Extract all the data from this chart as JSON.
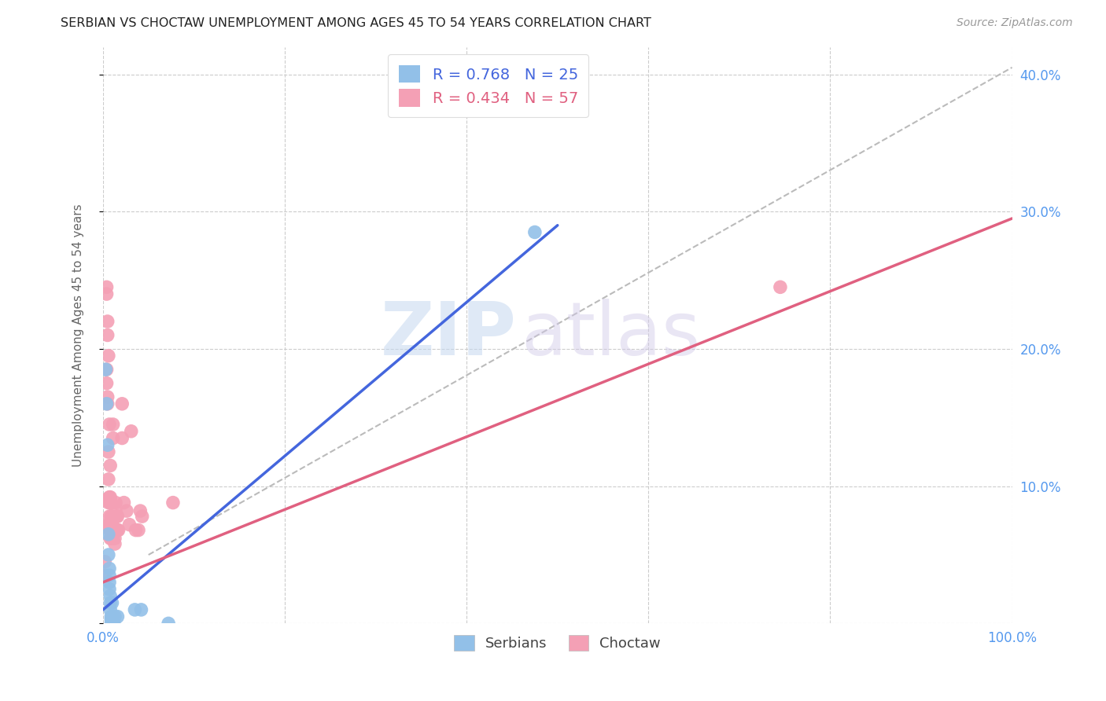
{
  "title": "SERBIAN VS CHOCTAW UNEMPLOYMENT AMONG AGES 45 TO 54 YEARS CORRELATION CHART",
  "source": "Source: ZipAtlas.com",
  "ylabel": "Unemployment Among Ages 45 to 54 years",
  "xlim": [
    0.0,
    1.0
  ],
  "ylim": [
    0.0,
    0.42
  ],
  "xticks": [
    0.0,
    0.2,
    0.4,
    0.6,
    0.8,
    1.0
  ],
  "xticklabels": [
    "0.0%",
    "",
    "",
    "",
    "",
    "100.0%"
  ],
  "yticks": [
    0.0,
    0.1,
    0.2,
    0.3,
    0.4
  ],
  "yticklabels_right": [
    "",
    "10.0%",
    "20.0%",
    "30.0%",
    "40.0%"
  ],
  "serbian_color": "#92C0E8",
  "choctaw_color": "#F4A0B5",
  "serbian_line_color": "#4466DD",
  "choctaw_line_color": "#E06080",
  "dashed_line_color": "#BBBBBB",
  "R_serbian": 0.768,
  "N_serbian": 25,
  "R_choctaw": 0.434,
  "N_choctaw": 57,
  "watermark_zip": "ZIP",
  "watermark_atlas": "atlas",
  "background_color": "#FFFFFF",
  "serbian_line_x": [
    0.0,
    0.5
  ],
  "serbian_line_y": [
    0.01,
    0.29
  ],
  "choctaw_line_x": [
    0.0,
    1.0
  ],
  "choctaw_line_y": [
    0.03,
    0.295
  ],
  "dashed_line_x": [
    0.05,
    1.0
  ],
  "dashed_line_y": [
    0.05,
    0.405
  ],
  "serbian_points": [
    [
      0.003,
      0.185
    ],
    [
      0.004,
      0.16
    ],
    [
      0.005,
      0.13
    ],
    [
      0.006,
      0.065
    ],
    [
      0.006,
      0.05
    ],
    [
      0.007,
      0.04
    ],
    [
      0.007,
      0.035
    ],
    [
      0.007,
      0.03
    ],
    [
      0.007,
      0.025
    ],
    [
      0.008,
      0.02
    ],
    [
      0.008,
      0.015
    ],
    [
      0.008,
      0.01
    ],
    [
      0.009,
      0.005
    ],
    [
      0.009,
      0.003
    ],
    [
      0.009,
      0.0
    ],
    [
      0.01,
      0.005
    ],
    [
      0.01,
      0.015
    ],
    [
      0.011,
      0.0
    ],
    [
      0.012,
      0.0
    ],
    [
      0.013,
      0.005
    ],
    [
      0.016,
      0.005
    ],
    [
      0.035,
      0.01
    ],
    [
      0.042,
      0.01
    ],
    [
      0.072,
      0.0
    ],
    [
      0.475,
      0.285
    ]
  ],
  "choctaw_points": [
    [
      0.002,
      0.045
    ],
    [
      0.002,
      0.035
    ],
    [
      0.003,
      0.09
    ],
    [
      0.003,
      0.07
    ],
    [
      0.004,
      0.245
    ],
    [
      0.004,
      0.24
    ],
    [
      0.004,
      0.185
    ],
    [
      0.004,
      0.175
    ],
    [
      0.005,
      0.165
    ],
    [
      0.005,
      0.22
    ],
    [
      0.005,
      0.21
    ],
    [
      0.005,
      0.16
    ],
    [
      0.006,
      0.195
    ],
    [
      0.006,
      0.125
    ],
    [
      0.006,
      0.105
    ],
    [
      0.006,
      0.088
    ],
    [
      0.006,
      0.072
    ],
    [
      0.007,
      0.145
    ],
    [
      0.007,
      0.092
    ],
    [
      0.007,
      0.078
    ],
    [
      0.008,
      0.115
    ],
    [
      0.008,
      0.092
    ],
    [
      0.008,
      0.088
    ],
    [
      0.008,
      0.068
    ],
    [
      0.008,
      0.062
    ],
    [
      0.009,
      0.088
    ],
    [
      0.009,
      0.078
    ],
    [
      0.009,
      0.072
    ],
    [
      0.009,
      0.062
    ],
    [
      0.01,
      0.078
    ],
    [
      0.01,
      0.072
    ],
    [
      0.01,
      0.068
    ],
    [
      0.011,
      0.145
    ],
    [
      0.011,
      0.135
    ],
    [
      0.011,
      0.068
    ],
    [
      0.011,
      0.062
    ],
    [
      0.013,
      0.068
    ],
    [
      0.013,
      0.062
    ],
    [
      0.013,
      0.058
    ],
    [
      0.014,
      0.088
    ],
    [
      0.014,
      0.082
    ],
    [
      0.015,
      0.078
    ],
    [
      0.016,
      0.078
    ],
    [
      0.016,
      0.068
    ],
    [
      0.017,
      0.068
    ],
    [
      0.021,
      0.16
    ],
    [
      0.021,
      0.135
    ],
    [
      0.023,
      0.088
    ],
    [
      0.026,
      0.082
    ],
    [
      0.029,
      0.072
    ],
    [
      0.031,
      0.14
    ],
    [
      0.036,
      0.068
    ],
    [
      0.039,
      0.068
    ],
    [
      0.041,
      0.082
    ],
    [
      0.043,
      0.078
    ],
    [
      0.077,
      0.088
    ],
    [
      0.745,
      0.245
    ]
  ]
}
